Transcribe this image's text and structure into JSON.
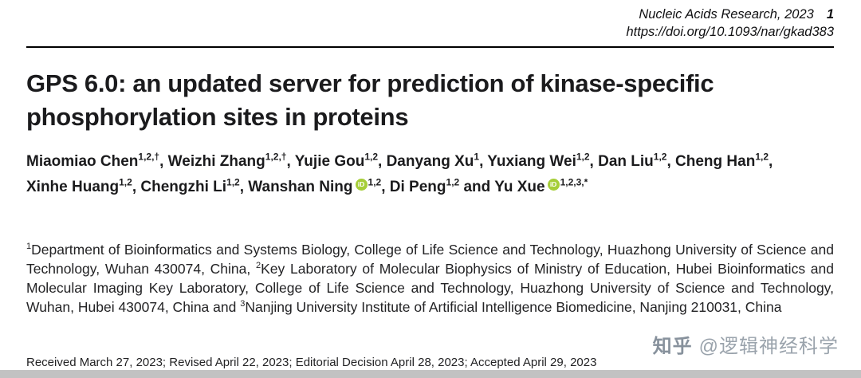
{
  "journal": {
    "name": "Nucleic Acids Research, 2023",
    "page_number": "1",
    "doi": "https://doi.org/10.1093/nar/gkad383"
  },
  "article": {
    "title": "GPS 6.0: an updated server for prediction of kinase-specific phosphorylation sites in proteins",
    "authors": [
      {
        "name": "Miaomiao Chen",
        "sup": "1,2,†"
      },
      {
        "name": "Weizhi Zhang",
        "sup": "1,2,†"
      },
      {
        "name": "Yujie Gou",
        "sup": "1,2"
      },
      {
        "name": "Danyang Xu",
        "sup": "1"
      },
      {
        "name": "Yuxiang Wei",
        "sup": "1,2"
      },
      {
        "name": "Dan Liu",
        "sup": "1,2"
      },
      {
        "name": "Cheng Han",
        "sup": "1,2"
      },
      {
        "name": "Xinhe Huang",
        "sup": "1,2"
      },
      {
        "name": "Chengzhi Li",
        "sup": "1,2"
      },
      {
        "name": "Wanshan Ning",
        "orcid": true,
        "sup": "1,2"
      },
      {
        "name": "Di Peng",
        "sup": "1,2"
      },
      {
        "name": "Yu Xue",
        "orcid": true,
        "sup": "1,2,3,*"
      }
    ],
    "author_separator": ", ",
    "author_last_separator": " and ",
    "orcid_icon_text": "iD",
    "orcid_color": "#A6CE39",
    "affiliation_segments": [
      {
        "type": "sup",
        "text": "1"
      },
      {
        "type": "text",
        "text": "Department of Bioinformatics and Systems Biology, College of Life Science and Technology, Huazhong University of Science and Technology, Wuhan 430074, China, "
      },
      {
        "type": "sup",
        "text": "2"
      },
      {
        "type": "text",
        "text": "Key Laboratory of Molecular Biophysics of Ministry of Education, Hubei Bioinformatics and Molecular Imaging Key Laboratory, College of Life Science and Technology, Huazhong University of Science and Technology, Wuhan, Hubei 430074, China and "
      },
      {
        "type": "sup",
        "text": "3"
      },
      {
        "type": "text",
        "text": "Nanjing University Institute of Artificial Intelligence Biomedicine, Nanjing 210031, China"
      }
    ],
    "dates": "Received March 27, 2023; Revised April 22, 2023; Editorial Decision April 28, 2023; Accepted April 29, 2023"
  },
  "watermark": {
    "brand": "知乎",
    "handle": "@逻辑神经科学"
  }
}
